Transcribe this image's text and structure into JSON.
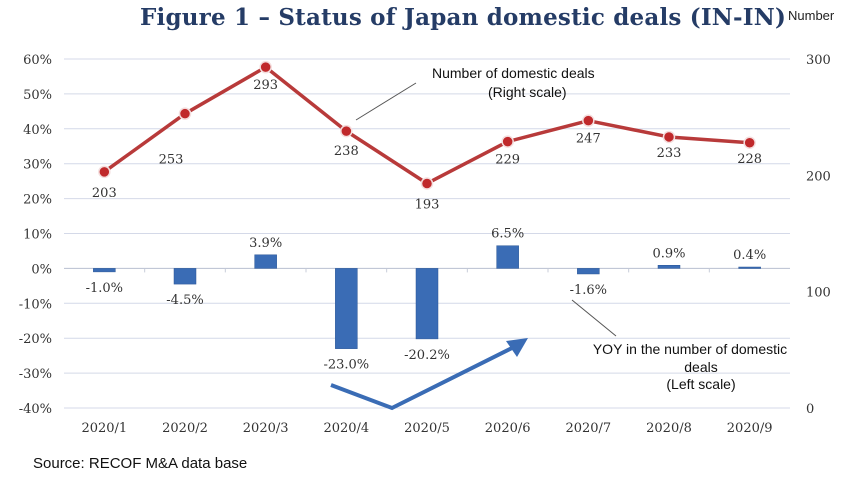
{
  "title": "Figure 1 – Status of Japan domestic deals (IN-IN)",
  "right_axis_unit": "Number",
  "source": "Source: RECOF M&A data base",
  "colors": {
    "line": "#b83a3a",
    "marker": "#c0292b",
    "bar": "#3a6cb5",
    "arrow": "#3a6cb5",
    "grid": "#d4d9e8",
    "title": "#253c66"
  },
  "chart_data": {
    "type": "bar+line",
    "title": "Figure 1 – Status of Japan domestic deals (IN-IN)",
    "categories": [
      "2020/1",
      "2020/2",
      "2020/3",
      "2020/4",
      "2020/5",
      "2020/6",
      "2020/7",
      "2020/8",
      "2020/9"
    ],
    "series": [
      {
        "name": "YOY in the number of domestic deals",
        "type": "bar",
        "axis": "left",
        "values": [
          -1.0,
          -4.5,
          3.9,
          -23.0,
          -20.2,
          6.5,
          -1.6,
          0.9,
          0.4
        ],
        "labels": [
          "-1.0%",
          "-4.5%",
          "3.9%",
          "-23.0%",
          "-20.2%",
          "6.5%",
          "-1.6%",
          "0.9%",
          "0.4%"
        ]
      },
      {
        "name": "Number of domestic deals",
        "type": "line",
        "axis": "right",
        "values": [
          203,
          253,
          293,
          238,
          193,
          229,
          247,
          233,
          228
        ],
        "labels": [
          "203",
          "253",
          "293",
          "238",
          "193",
          "229",
          "247",
          "233",
          "228"
        ]
      }
    ],
    "left_axis": {
      "range": [
        -40,
        60
      ],
      "ticks": [
        60,
        50,
        40,
        30,
        20,
        10,
        0,
        -10,
        -20,
        -30,
        -40
      ],
      "tick_labels": [
        "60%",
        "50%",
        "40%",
        "30%",
        "20%",
        "10%",
        "0%",
        "-10%",
        "-20%",
        "-30%",
        "-40%"
      ]
    },
    "right_axis": {
      "label": "Number",
      "range": [
        0,
        300
      ],
      "ticks": [
        300,
        200,
        100,
        0
      ],
      "tick_labels": [
        "300",
        "200",
        "100",
        "0"
      ]
    },
    "grid": true,
    "annotations": [
      {
        "text_lines": [
          "Number of domestic deals",
          "(Right scale)"
        ],
        "points_to": "line series near 2020/4"
      },
      {
        "text_lines": [
          "YOY in the number of domestic",
          "deals",
          "(Left scale)"
        ],
        "points_to": "bar 2020/7"
      },
      {
        "text": "V-shaped recovery arrow",
        "from": "2020/4",
        "via": "2020/5 (low point)",
        "to": "2020/6"
      }
    ]
  }
}
